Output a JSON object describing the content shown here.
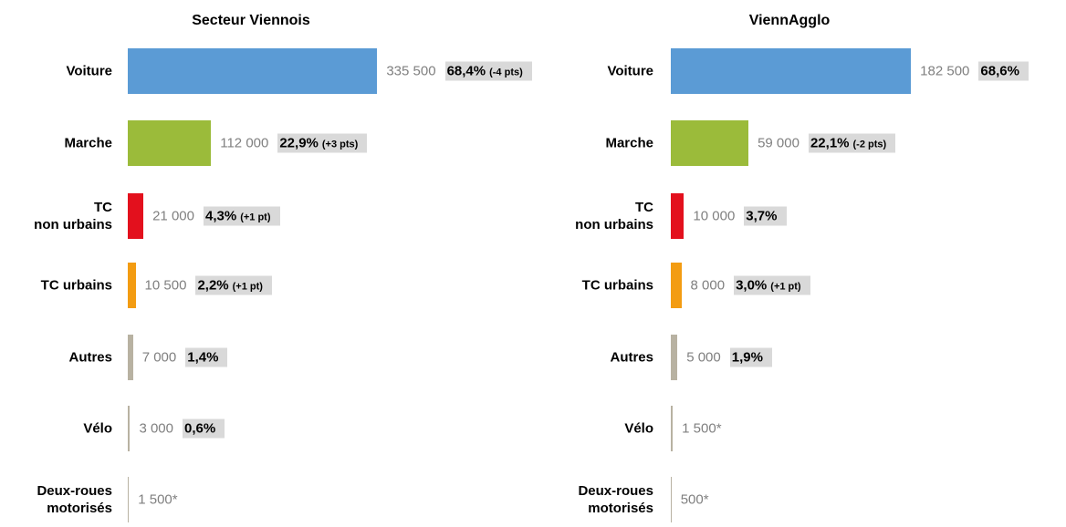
{
  "chart_data": [
    {
      "type": "bar",
      "orientation": "horizontal",
      "title": "Secteur Viennois",
      "categories": [
        "Voiture",
        "Marche",
        "TC\nnon urbains",
        "TC urbains",
        "Autres",
        "Vélo",
        "Deux-roues\nmotorisés"
      ],
      "values": [
        335500,
        112000,
        21000,
        10500,
        7000,
        3000,
        1500
      ],
      "value_labels": [
        "335 500",
        "112 000",
        "21 000",
        "10 500",
        "7 000",
        "3 000",
        "1 500*"
      ],
      "shares": [
        68.4,
        22.9,
        4.3,
        2.2,
        1.4,
        0.6,
        null
      ],
      "share_labels": [
        "68,4%",
        "22,9%",
        "4,3%",
        "2,2%",
        "1,4%",
        "0,6%",
        null
      ],
      "changes": [
        "(-4 pts)",
        "(+3 pts)",
        "(+1 pt)",
        "(+1 pt)",
        null,
        null,
        null
      ],
      "colors": [
        "#5b9bd5",
        "#9bbb3a",
        "#e3101d",
        "#f39c12",
        "#b8b2a2",
        "#b8b2a2",
        "#b8b2a2"
      ],
      "xlim": [
        0,
        340000
      ]
    },
    {
      "type": "bar",
      "orientation": "horizontal",
      "title": "ViennAgglo",
      "categories": [
        "Voiture",
        "Marche",
        "TC\nnon urbains",
        "TC urbains",
        "Autres",
        "Vélo",
        "Deux-roues\nmotorisés"
      ],
      "values": [
        182500,
        59000,
        10000,
        8000,
        5000,
        1500,
        500
      ],
      "value_labels": [
        "182 500",
        "59 000",
        "10 000",
        "8 000",
        "5 000",
        "1 500*",
        "500*"
      ],
      "shares": [
        68.6,
        22.1,
        3.7,
        3.0,
        1.9,
        null,
        null
      ],
      "share_labels": [
        "68,6%",
        "22,1%",
        "3,7%",
        "3,0%",
        "1,9%",
        null,
        null
      ],
      "changes": [
        null,
        "(-2 pts)",
        null,
        "(+1 pt)",
        null,
        null,
        null
      ],
      "colors": [
        "#5b9bd5",
        "#9bbb3a",
        "#e3101d",
        "#f39c12",
        "#b8b2a2",
        "#b8b2a2",
        "#b8b2a2"
      ],
      "xlim": [
        0,
        190000
      ]
    }
  ]
}
